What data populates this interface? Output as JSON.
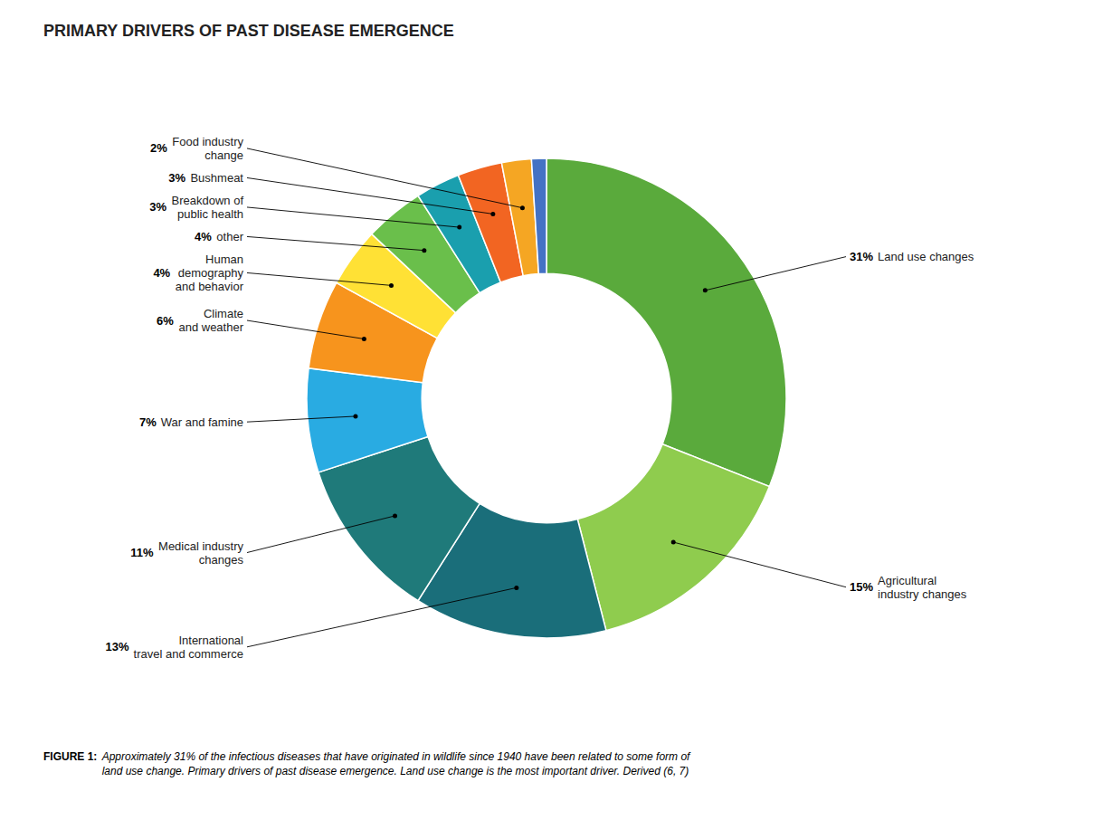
{
  "chart_data": {
    "type": "pie",
    "title": "PRIMARY DRIVERS OF PAST DISEASE EMERGENCE",
    "categories": [
      "Land use changes",
      "Agricultural\nindustry changes",
      "International\ntravel and commerce",
      "Medical industry\nchanges",
      "War and famine",
      "Climate\nand weather",
      "Human\ndemography\nand behavior",
      "other",
      "Breakdown of\npublic health",
      "Bushmeat",
      "Food industry\nchange",
      null
    ],
    "values": [
      31,
      15,
      13,
      11,
      7,
      6,
      4,
      4,
      3,
      3,
      2,
      1
    ],
    "value_labels": [
      "31%",
      "15%",
      "13%",
      "11%",
      "7%",
      "6%",
      "4%",
      "4%",
      "3%",
      "3%",
      "2%",
      null
    ],
    "colors": [
      "#5aaa3c",
      "#8fcc4e",
      "#1a6e7a",
      "#1f7a7a",
      "#29abe2",
      "#f7941d",
      "#ffe135",
      "#6abf4b",
      "#1a9fae",
      "#f26522",
      "#f5a623",
      "#4472c4"
    ],
    "data_labels": true,
    "annotations": [
      "FIGURE 1: ",
      "Approximately 31% of the infectious diseases that have originated in wildlife since 1940 have been related to some form of\nland use change. Primary drivers of past disease emergence. Land use change is the most important driver. Derived (6, 7)"
    ]
  }
}
